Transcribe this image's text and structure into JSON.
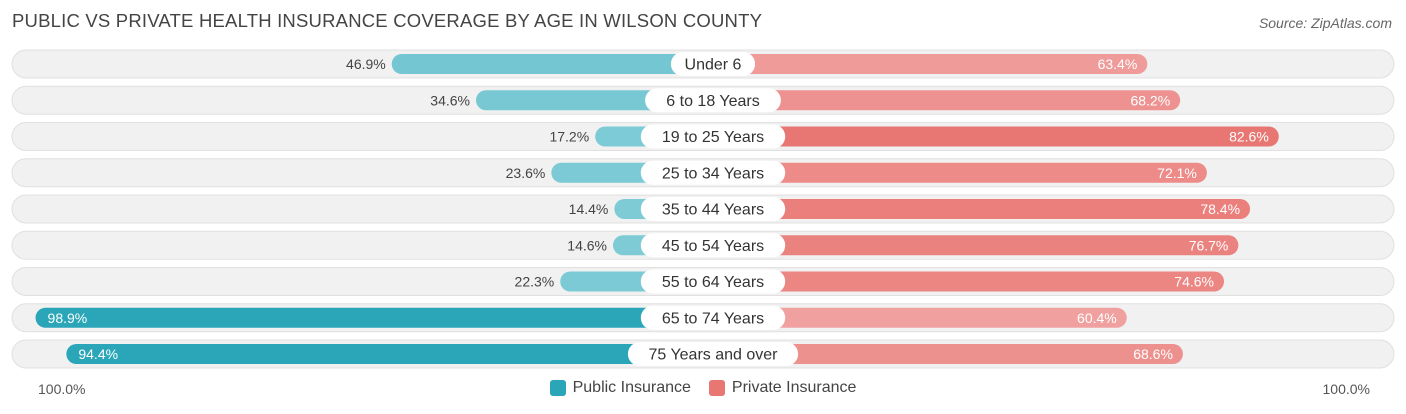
{
  "title": "PUBLIC VS PRIVATE HEALTH INSURANCE COVERAGE BY AGE IN WILSON COUNTY",
  "source": "Source: ZipAtlas.com",
  "axis": {
    "left_label": "100.0%",
    "right_label": "100.0%"
  },
  "legend": {
    "public_label": "Public Insurance",
    "private_label": "Private Insurance"
  },
  "colors": {
    "public_light": "#7ecbd6",
    "public_dark": "#2aa6b8",
    "private_light": "#f0a19f",
    "private_dark": "#e87773",
    "row_bg": "#f1f1f1",
    "row_border": "#e0e0e0"
  },
  "chart_data": {
    "type": "bar",
    "orientation": "horizontal-diverging",
    "title": "PUBLIC VS PRIVATE HEALTH INSURANCE COVERAGE BY AGE IN WILSON COUNTY",
    "xlim": [
      -100,
      100
    ],
    "categories": [
      "Under 6",
      "6 to 18 Years",
      "19 to 25 Years",
      "25 to 34 Years",
      "35 to 44 Years",
      "45 to 54 Years",
      "55 to 64 Years",
      "65 to 74 Years",
      "75 Years and over"
    ],
    "series": [
      {
        "name": "Public Insurance",
        "values": [
          46.9,
          34.6,
          17.2,
          23.6,
          14.4,
          14.6,
          22.3,
          98.9,
          94.4
        ],
        "labels": [
          "46.9%",
          "34.6%",
          "17.2%",
          "23.6%",
          "14.4%",
          "14.6%",
          "22.3%",
          "98.9%",
          "94.4%"
        ]
      },
      {
        "name": "Private Insurance",
        "values": [
          63.4,
          68.2,
          82.6,
          72.1,
          78.4,
          76.7,
          74.6,
          60.4,
          68.6
        ],
        "labels": [
          "63.4%",
          "68.2%",
          "82.6%",
          "72.1%",
          "78.4%",
          "76.7%",
          "74.6%",
          "60.4%",
          "68.6%"
        ]
      }
    ]
  }
}
